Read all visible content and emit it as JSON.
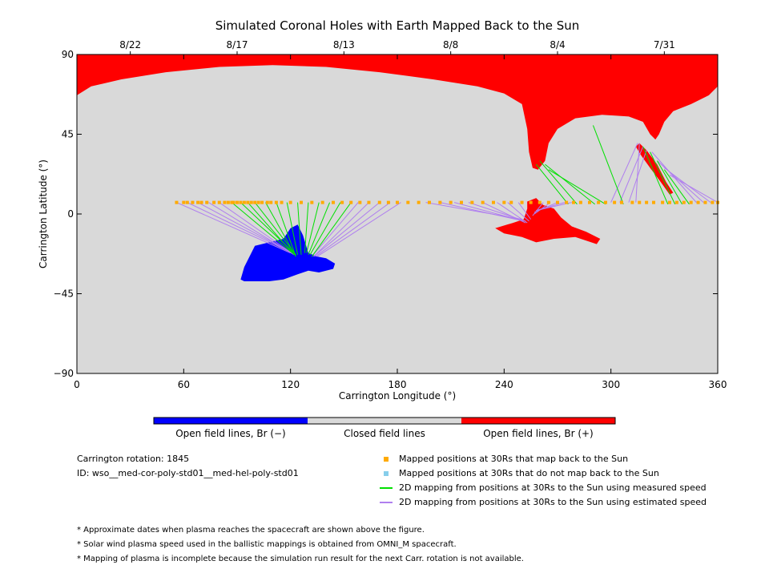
{
  "chart_data": {
    "type": "map",
    "title": "Simulated Coronal Holes with Earth Mapped Back to the Sun",
    "xlabel": "Carrington Longitude (°)",
    "ylabel": "Carrington Latitude (°)",
    "xlim": [
      0,
      360
    ],
    "ylim": [
      -90,
      90
    ],
    "xticks": [
      0,
      60,
      120,
      180,
      240,
      300,
      360
    ],
    "yticks": [
      -90,
      -45,
      0,
      45,
      90
    ],
    "yticklabels": [
      "−90",
      "−45",
      "0",
      "45",
      "90"
    ],
    "top_axis_dates": [
      {
        "label": "8/22",
        "lon": 30
      },
      {
        "label": "8/17",
        "lon": 90
      },
      {
        "label": "8/13",
        "lon": 150
      },
      {
        "label": "8/8",
        "lon": 210
      },
      {
        "label": "8/4",
        "lon": 270
      },
      {
        "label": "7/31",
        "lon": 330
      }
    ],
    "colors": {
      "closed": "#d9d9d9",
      "open_negative": "#0000ff",
      "open_positive": "#ff0000",
      "mapped_point": "#ffaa00",
      "unmapped_point": "#87ceeb",
      "measured_line": "#00e000",
      "estimated_line": "#b07fef"
    },
    "regions": [
      {
        "name": "north polar open field (+)",
        "polarity": "positive",
        "outline": [
          [
            0,
            90
          ],
          [
            360,
            90
          ],
          [
            360,
            72
          ],
          [
            355,
            67
          ],
          [
            345,
            62
          ],
          [
            335,
            58
          ],
          [
            330,
            52
          ],
          [
            327,
            45
          ],
          [
            325,
            42
          ],
          [
            322,
            45
          ],
          [
            318,
            52
          ],
          [
            310,
            55
          ],
          [
            295,
            56
          ],
          [
            280,
            54
          ],
          [
            270,
            48
          ],
          [
            265,
            40
          ],
          [
            263,
            30
          ],
          [
            259,
            25
          ],
          [
            256,
            26
          ],
          [
            254,
            35
          ],
          [
            253,
            48
          ],
          [
            250,
            62
          ],
          [
            240,
            68
          ],
          [
            225,
            72
          ],
          [
            200,
            76
          ],
          [
            170,
            80
          ],
          [
            140,
            83
          ],
          [
            110,
            84
          ],
          [
            80,
            83
          ],
          [
            50,
            80
          ],
          [
            25,
            76
          ],
          [
            8,
            72
          ],
          [
            0,
            67
          ]
        ]
      },
      {
        "name": "north polar extension (+)",
        "polarity": "positive",
        "outline": [
          [
            316,
            40
          ],
          [
            320,
            36
          ],
          [
            326,
            28
          ],
          [
            331,
            18
          ],
          [
            335,
            12
          ],
          [
            333,
            11
          ],
          [
            328,
            18
          ],
          [
            322,
            26
          ],
          [
            317,
            33
          ],
          [
            314,
            38
          ]
        ]
      },
      {
        "name": "equatorial open field (+)",
        "polarity": "positive",
        "outline": [
          [
            253,
            7
          ],
          [
            258,
            9
          ],
          [
            262,
            5
          ],
          [
            268,
            3
          ],
          [
            272,
            -2
          ],
          [
            278,
            -7
          ],
          [
            286,
            -10
          ],
          [
            294,
            -14
          ],
          [
            292,
            -17
          ],
          [
            280,
            -13
          ],
          [
            268,
            -14
          ],
          [
            258,
            -16
          ],
          [
            250,
            -13
          ],
          [
            240,
            -11
          ],
          [
            235,
            -8
          ],
          [
            245,
            -5
          ],
          [
            251,
            -3
          ],
          [
            253,
            3
          ]
        ]
      },
      {
        "name": "southern open field (−)",
        "polarity": "negative",
        "outline": [
          [
            100,
            -18
          ],
          [
            108,
            -16
          ],
          [
            116,
            -14
          ],
          [
            120,
            -8
          ],
          [
            124,
            -6
          ],
          [
            127,
            -12
          ],
          [
            130,
            -22
          ],
          [
            135,
            -24
          ],
          [
            140,
            -25
          ],
          [
            145,
            -28
          ],
          [
            144,
            -31
          ],
          [
            136,
            -33
          ],
          [
            130,
            -32
          ],
          [
            124,
            -34
          ],
          [
            116,
            -37
          ],
          [
            108,
            -38
          ],
          [
            100,
            -38
          ],
          [
            94,
            -38
          ],
          [
            92,
            -37
          ],
          [
            94,
            -30
          ]
        ]
      }
    ],
    "mapped_points": {
      "latitude": 6.5,
      "lon": [
        56,
        60,
        62,
        65,
        68,
        70,
        73,
        77,
        80,
        83,
        85,
        87,
        88,
        90,
        92,
        94,
        96,
        98,
        100,
        102,
        104,
        107,
        109,
        112,
        115,
        120,
        126,
        132,
        138,
        144,
        149,
        154,
        159,
        164,
        170,
        175,
        180,
        186,
        192,
        198,
        204,
        210,
        216,
        222,
        228,
        234,
        240,
        244,
        250,
        255,
        260,
        265,
        270,
        275,
        279,
        283,
        288,
        293,
        297,
        302,
        306,
        312,
        316,
        320,
        324,
        329,
        333,
        337,
        341,
        345,
        349,
        353,
        357,
        360
      ]
    },
    "unmapped_points": {
      "latitude": 6.5,
      "lon": []
    },
    "measured_mappings": [
      [
        [
          87,
          6.5
        ],
        [
          121,
          -22
        ]
      ],
      [
        [
          92,
          6.5
        ],
        [
          122,
          -22
        ]
      ],
      [
        [
          96,
          6.5
        ],
        [
          122,
          -23
        ]
      ],
      [
        [
          100,
          6.5
        ],
        [
          123,
          -23
        ]
      ],
      [
        [
          106,
          6.5
        ],
        [
          123,
          -24
        ]
      ],
      [
        [
          112,
          6.5
        ],
        [
          123,
          -24
        ]
      ],
      [
        [
          118,
          6.5
        ],
        [
          124,
          -23
        ]
      ],
      [
        [
          124,
          6.5
        ],
        [
          126,
          -23
        ]
      ],
      [
        [
          130,
          6.5
        ],
        [
          128,
          -22
        ]
      ],
      [
        [
          136,
          6.5
        ],
        [
          129,
          -22
        ]
      ],
      [
        [
          142,
          6.5
        ],
        [
          130,
          -23
        ]
      ],
      [
        [
          148,
          6.5
        ],
        [
          131,
          -23
        ]
      ],
      [
        [
          154,
          6.5
        ],
        [
          132,
          -24
        ]
      ],
      [
        [
          276,
          5.5
        ],
        [
          258,
          28
        ]
      ],
      [
        [
          281,
          5.5
        ],
        [
          260,
          30
        ]
      ],
      [
        [
          291,
          5.5
        ],
        [
          263,
          28
        ]
      ],
      [
        [
          297,
          5.5
        ],
        [
          265,
          25
        ]
      ],
      [
        [
          307,
          5.5
        ],
        [
          290,
          50
        ]
      ],
      [
        [
          332,
          5.5
        ],
        [
          318,
          38
        ]
      ],
      [
        [
          336,
          5.5
        ],
        [
          322,
          35
        ]
      ],
      [
        [
          340,
          5.5
        ],
        [
          326,
          30
        ]
      ],
      [
        [
          344,
          5.5
        ],
        [
          330,
          25
        ]
      ]
    ],
    "estimated_mappings": [
      [
        [
          56,
          6.5
        ],
        [
          120,
          -22
        ]
      ],
      [
        [
          62,
          6.5
        ],
        [
          121,
          -22
        ]
      ],
      [
        [
          68,
          6.5
        ],
        [
          121,
          -22
        ]
      ],
      [
        [
          74,
          6.5
        ],
        [
          122,
          -23
        ]
      ],
      [
        [
          80,
          6.5
        ],
        [
          122,
          -23
        ]
      ],
      [
        [
          158,
          6.5
        ],
        [
          132,
          -24
        ]
      ],
      [
        [
          164,
          6.5
        ],
        [
          133,
          -24
        ]
      ],
      [
        [
          170,
          6.5
        ],
        [
          133,
          -24
        ]
      ],
      [
        [
          176,
          6.5
        ],
        [
          134,
          -24
        ]
      ],
      [
        [
          182,
          6.5
        ],
        [
          135,
          -24
        ]
      ],
      [
        [
          196,
          6.5
        ],
        [
          250,
          -3
        ]
      ],
      [
        [
          204,
          6.5
        ],
        [
          251,
          -4
        ]
      ],
      [
        [
          212,
          6.5
        ],
        [
          251,
          -4
        ]
      ],
      [
        [
          220,
          6.5
        ],
        [
          252,
          -4
        ]
      ],
      [
        [
          228,
          6.5
        ],
        [
          252,
          -5
        ]
      ],
      [
        [
          236,
          6.5
        ],
        [
          253,
          -5
        ]
      ],
      [
        [
          242,
          6.5
        ],
        [
          254,
          -4
        ]
      ],
      [
        [
          248,
          6.5
        ],
        [
          255,
          -3
        ]
      ],
      [
        [
          262,
          6.5
        ],
        [
          256,
          -1
        ]
      ],
      [
        [
          266,
          6.5
        ],
        [
          257,
          0
        ]
      ],
      [
        [
          270,
          6.5
        ],
        [
          257,
          1
        ]
      ],
      [
        [
          274,
          6.5
        ],
        [
          258,
          2
        ]
      ],
      [
        [
          278,
          6.5
        ],
        [
          258,
          2
        ]
      ],
      [
        [
          300,
          6.5
        ],
        [
          315,
          40
        ]
      ],
      [
        [
          305,
          6.5
        ],
        [
          318,
          38
        ]
      ],
      [
        [
          310,
          6.5
        ],
        [
          320,
          36
        ]
      ],
      [
        [
          314,
          6.5
        ],
        [
          316,
          40
        ]
      ],
      [
        [
          348,
          6.5
        ],
        [
          323,
          35
        ]
      ],
      [
        [
          352,
          6.5
        ],
        [
          326,
          30
        ]
      ],
      [
        [
          356,
          6.5
        ],
        [
          330,
          26
        ]
      ],
      [
        [
          360,
          6.5
        ],
        [
          333,
          22
        ]
      ]
    ]
  },
  "colorbar": {
    "labels": [
      "Open field lines, Br (−)",
      "Closed field lines",
      "Open field lines, Br (+)"
    ]
  },
  "info": {
    "rotation": "Carrington rotation: 1845",
    "id": "ID: wso__med-cor-poly-std01__med-hel-poly-std01"
  },
  "legend": [
    {
      "label": "Mapped positions at 30Rs that map back to the Sun",
      "symbol": "square",
      "color": "#ffaa00"
    },
    {
      "label": "Mapped positions at 30Rs that do not map back to the Sun",
      "symbol": "square",
      "color": "#87ceeb"
    },
    {
      "label": "2D mapping from positions at 30Rs to the Sun using measured speed",
      "symbol": "line",
      "color": "#00e000"
    },
    {
      "label": "2D mapping from positions at 30Rs to the Sun using estimated speed",
      "symbol": "line",
      "color": "#b07fef"
    }
  ],
  "notes": [
    "* Approximate dates when plasma reaches the spacecraft are shown above the figure.",
    "* Solar wind plasma speed used in the ballistic mappings is obtained from OMNI_M spacecraft.",
    "* Mapping of plasma is incomplete because the simulation run result for the next Carr. rotation is not available."
  ]
}
